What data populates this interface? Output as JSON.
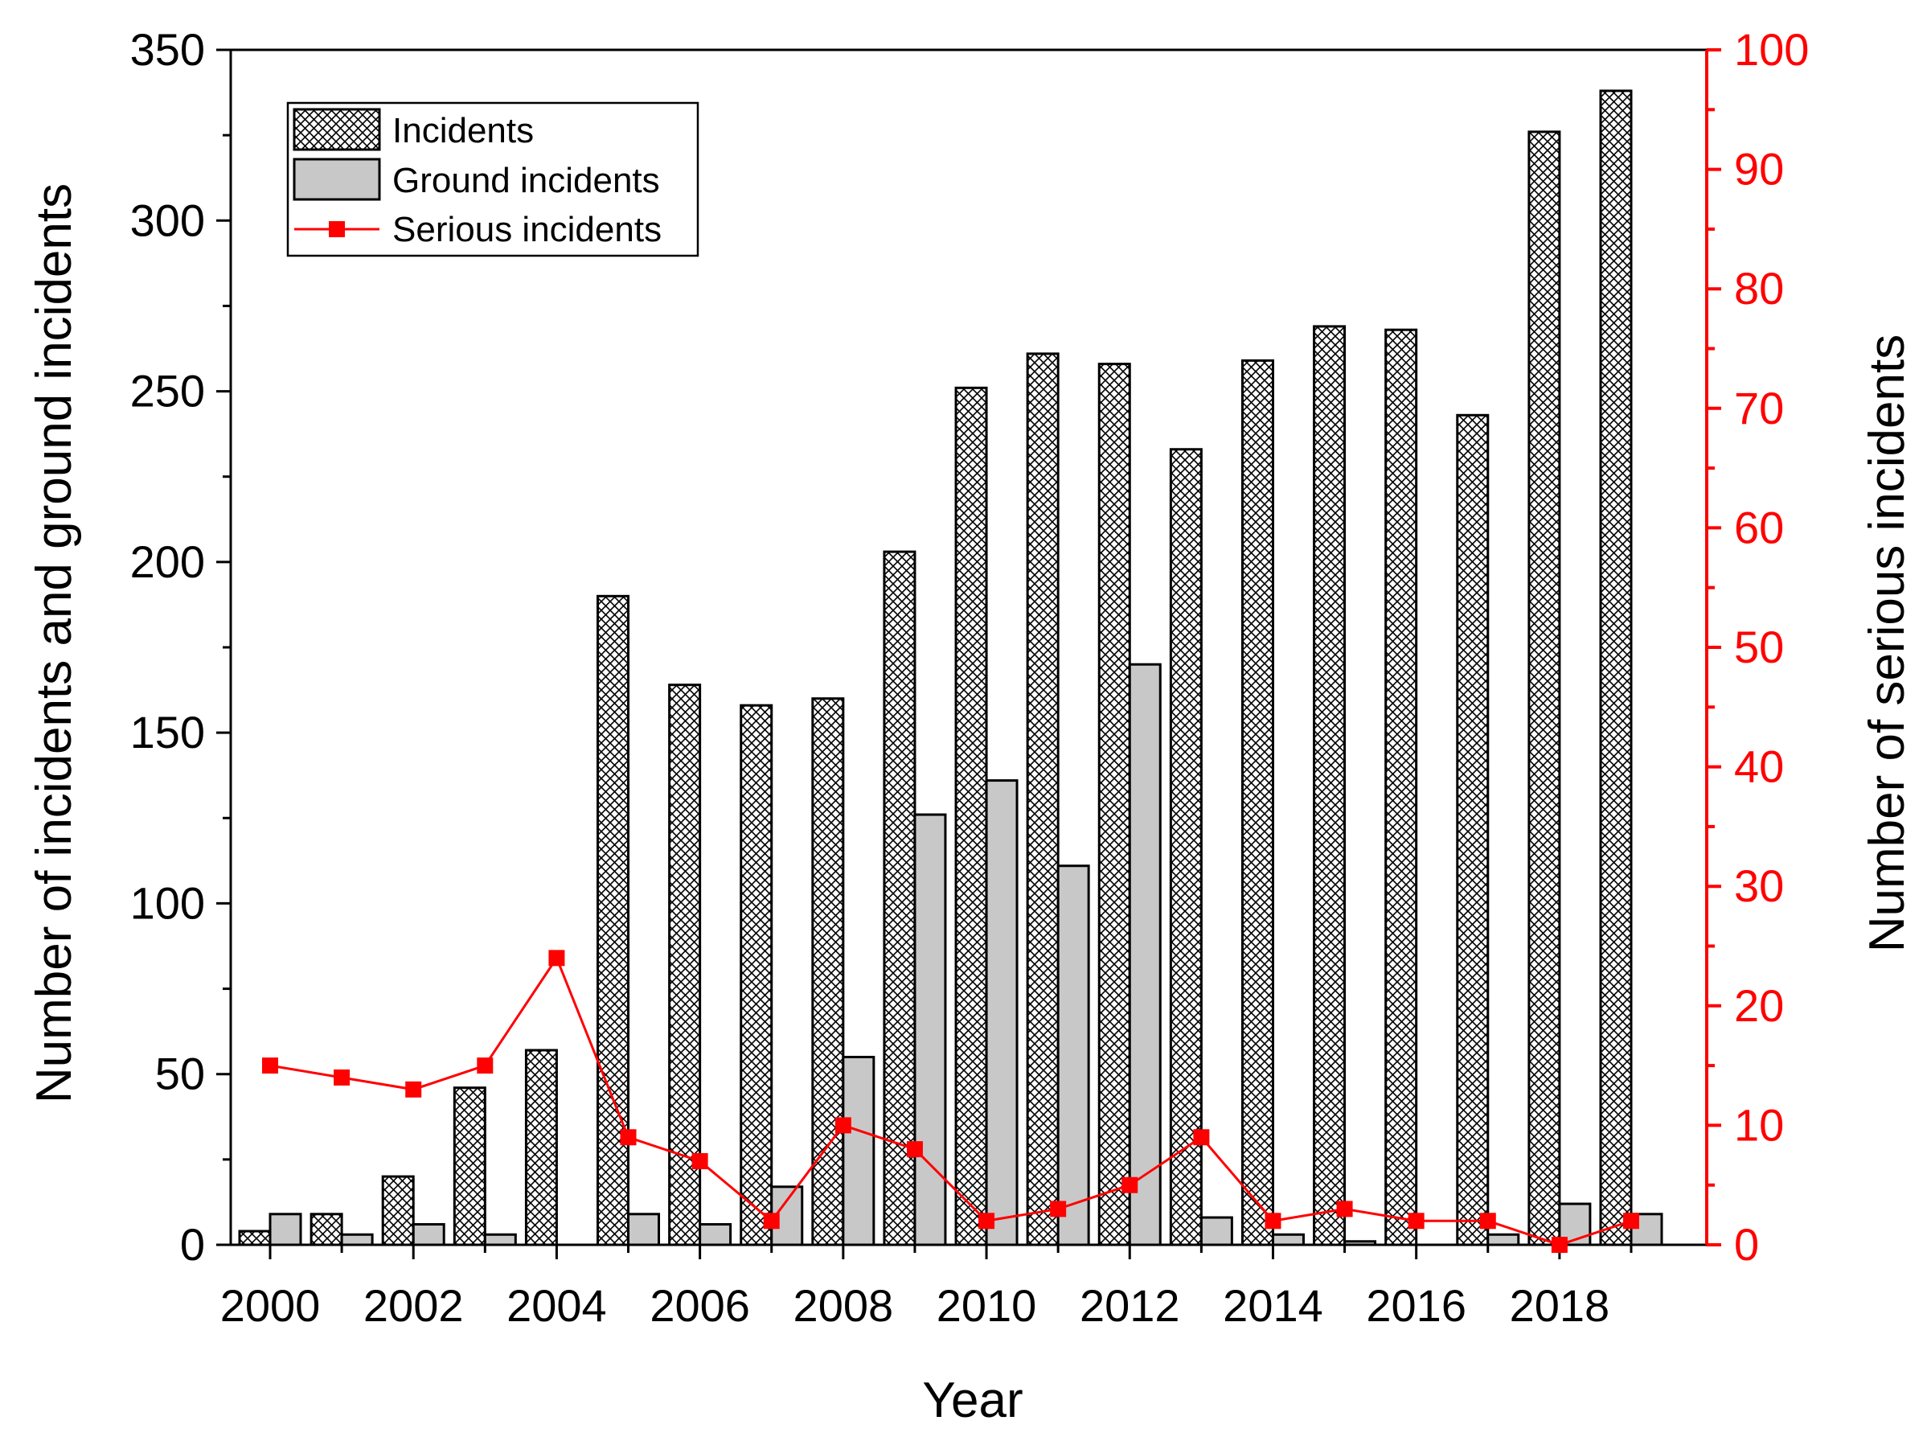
{
  "chart_data": {
    "type": "bar",
    "title": "",
    "xlabel": "Year",
    "ylabel": "Number of incidents and ground incidents",
    "y2label": "Number of serious incidents",
    "categories": [
      "2000",
      "2001",
      "2002",
      "2003",
      "2004",
      "2005",
      "2006",
      "2007",
      "2008",
      "2009",
      "2010",
      "2011",
      "2012",
      "2013",
      "2014",
      "2015",
      "2016",
      "2017",
      "2018",
      "2019"
    ],
    "x_tick_labels": [
      "2000",
      "2002",
      "2004",
      "2006",
      "2008",
      "2010",
      "2012",
      "2014",
      "2016",
      "2018"
    ],
    "ylim": [
      0,
      350
    ],
    "y_ticks": [
      0,
      50,
      100,
      150,
      200,
      250,
      300,
      350
    ],
    "y2lim": [
      0,
      100
    ],
    "y2_ticks": [
      0,
      10,
      20,
      30,
      40,
      50,
      60,
      70,
      80,
      90,
      100
    ],
    "legend_position": "top-left",
    "series": [
      {
        "name": "Incidents",
        "kind": "bar",
        "pattern": "crosshatch",
        "values": [
          4,
          9,
          20,
          46,
          57,
          190,
          164,
          158,
          160,
          203,
          251,
          261,
          258,
          233,
          259,
          269,
          268,
          243,
          326,
          338
        ]
      },
      {
        "name": "Ground incidents",
        "kind": "bar",
        "color": "#c8c8c8",
        "values": [
          9,
          3,
          6,
          3,
          0,
          9,
          6,
          17,
          55,
          126,
          136,
          111,
          170,
          8,
          3,
          1,
          0,
          3,
          12,
          9
        ]
      },
      {
        "name": "Serious incidents",
        "kind": "line",
        "axis": "right",
        "color": "#ff0000",
        "values": [
          15,
          14,
          13,
          15,
          24,
          9,
          7,
          2,
          10,
          8,
          2,
          3,
          5,
          9,
          2,
          3,
          2,
          2,
          0,
          2
        ]
      }
    ]
  }
}
